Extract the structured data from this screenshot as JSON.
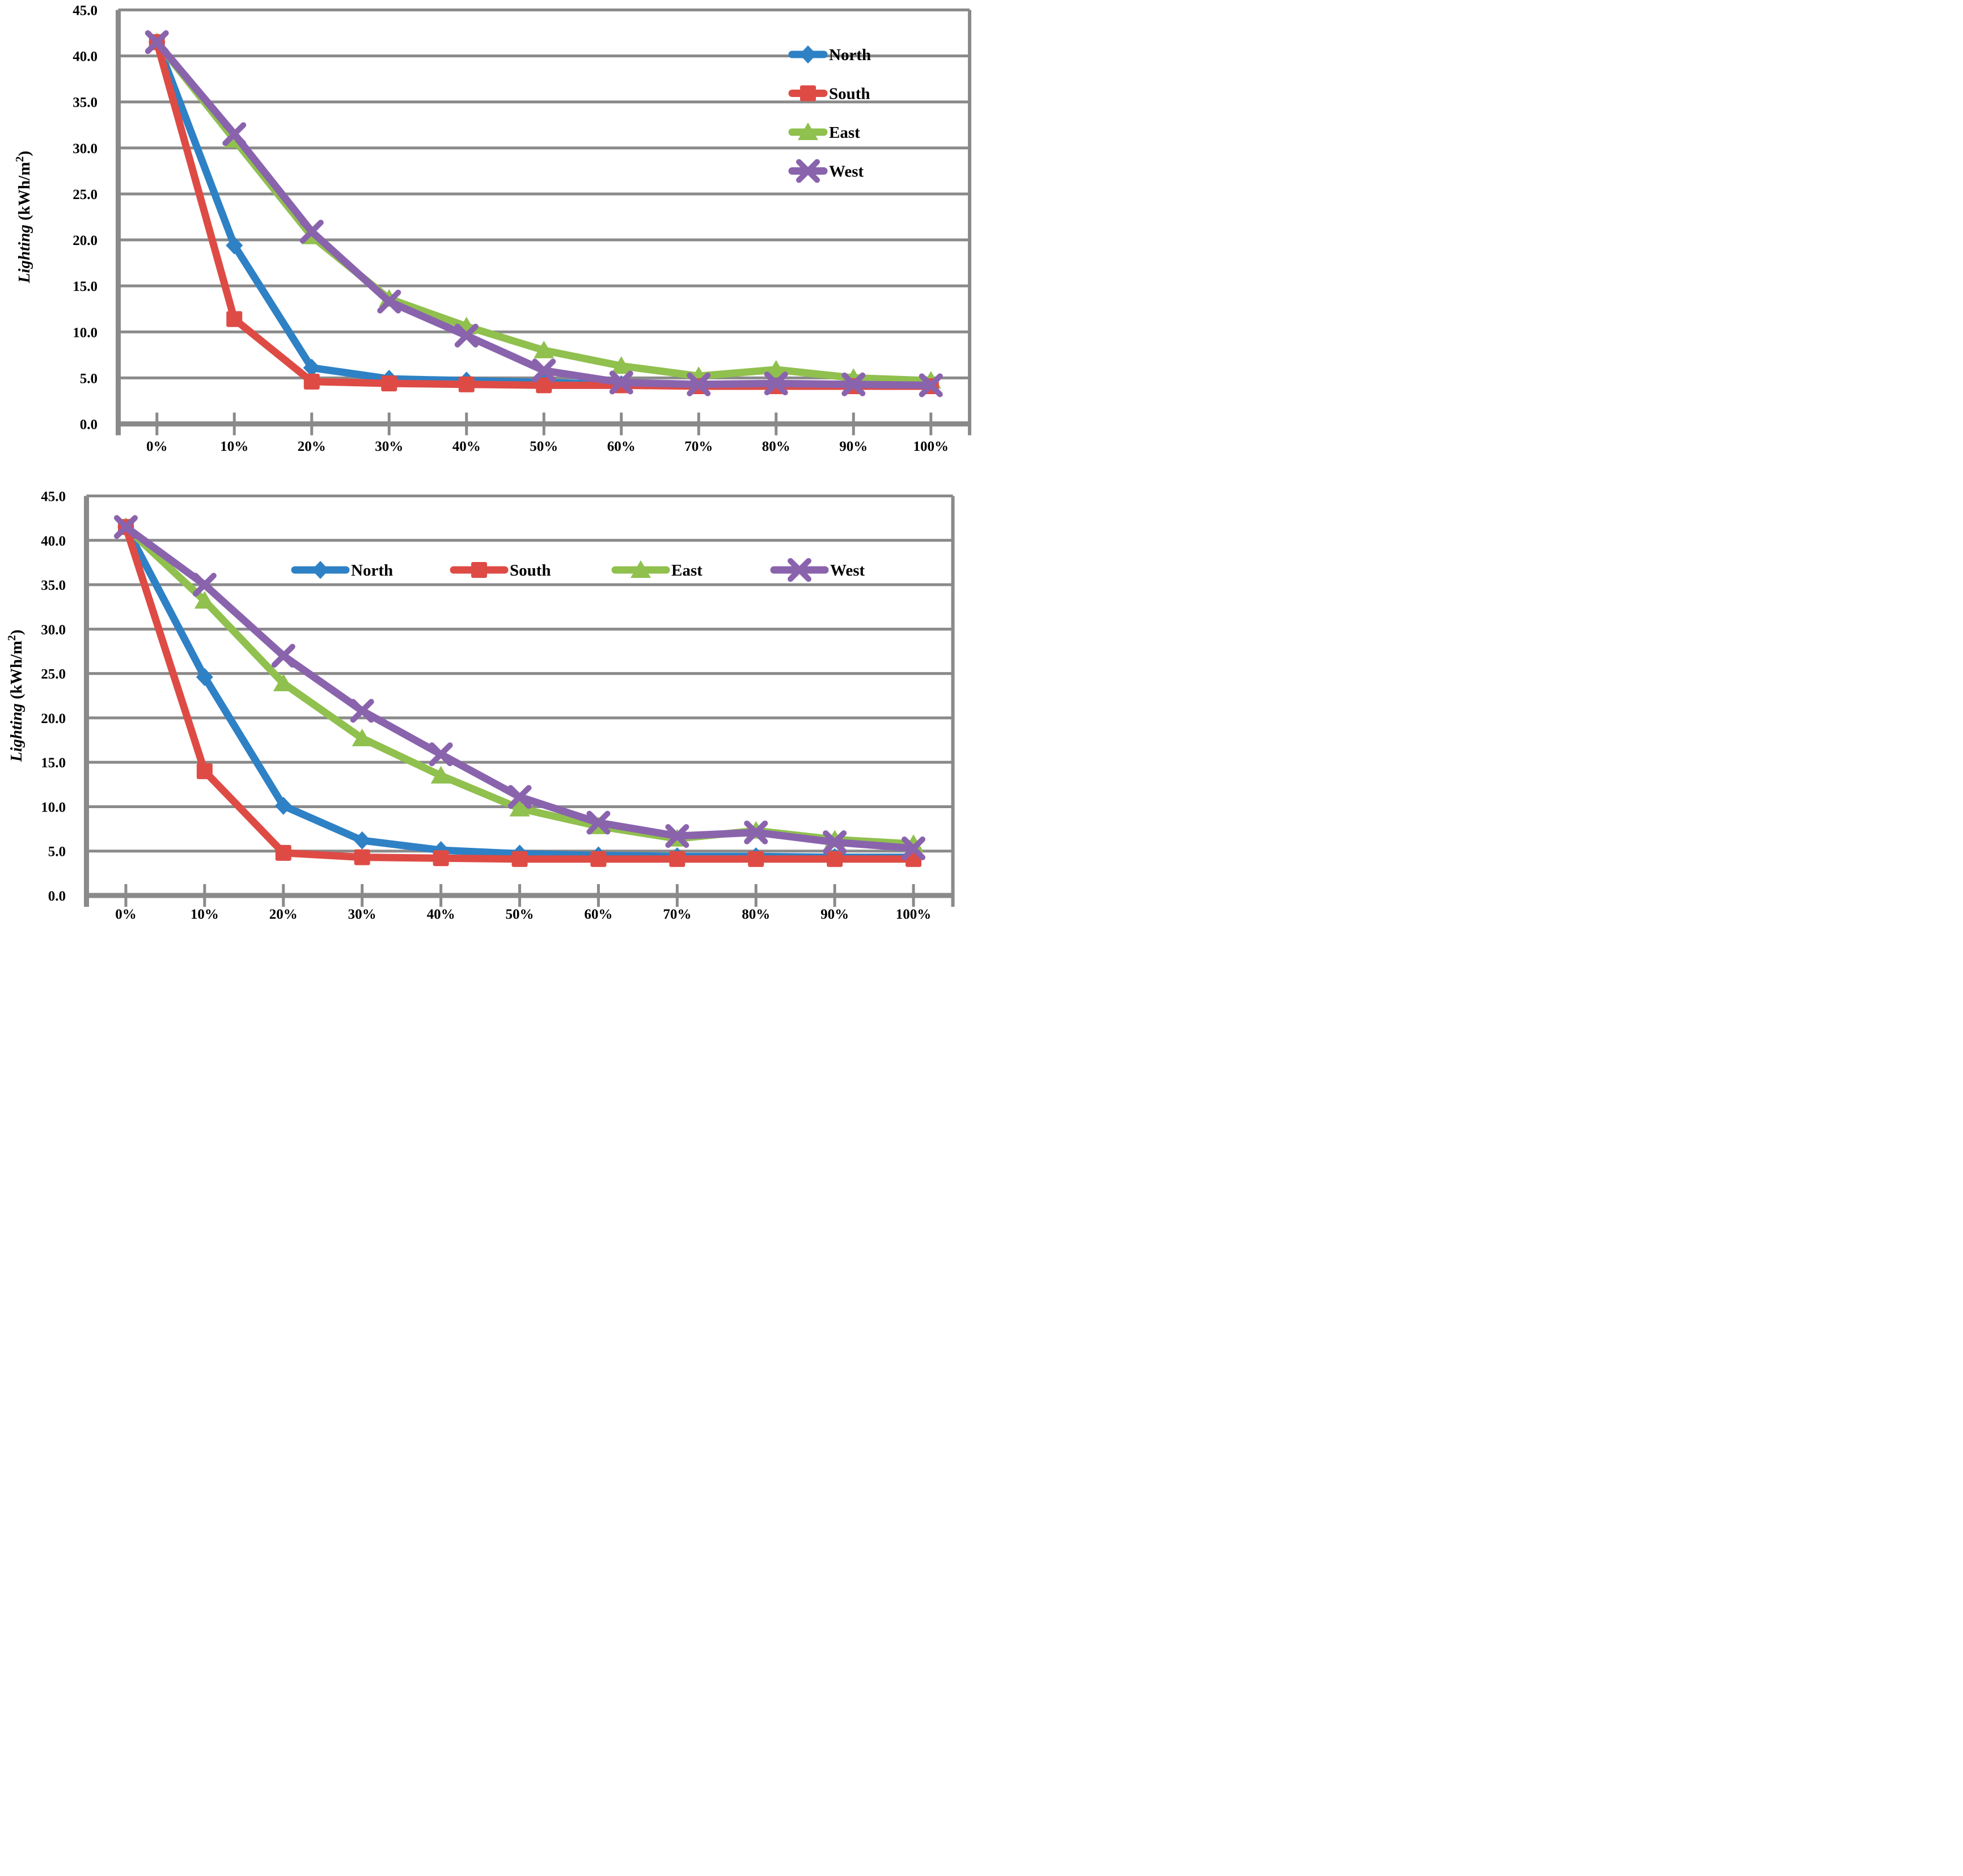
{
  "page": {
    "background": "#ffffff"
  },
  "colors": {
    "grid": "#8A8A8A",
    "axis": "#8A8A8A",
    "text": "#000000"
  },
  "chart_data": [
    {
      "type": "line",
      "panel": "top",
      "ylabel_parts": {
        "italic": "Lighting",
        "pre": " (kWh/m",
        "sup": "2",
        "close": ")"
      },
      "ylim": [
        0,
        45
      ],
      "ytick_step": 5,
      "grid": true,
      "legend_position": "inside-right-vertical",
      "ytick_labels": [
        "0.0",
        "5.0",
        "10.0",
        "15.0",
        "20.0",
        "25.0",
        "30.0",
        "35.0",
        "40.0",
        "45.0"
      ],
      "categories": [
        "0%",
        "10%",
        "20%",
        "30%",
        "40%",
        "50%",
        "60%",
        "70%",
        "80%",
        "90%",
        "100%"
      ],
      "series": [
        {
          "name": "North",
          "color": "#2E81C5",
          "marker": "diamond",
          "values": [
            41.5,
            19.4,
            6.1,
            4.9,
            4.7,
            4.5,
            4.3,
            4.3,
            4.3,
            4.2,
            4.2
          ]
        },
        {
          "name": "South",
          "color": "#DE4B45",
          "marker": "square",
          "values": [
            41.5,
            11.4,
            4.6,
            4.4,
            4.3,
            4.2,
            4.2,
            4.1,
            4.1,
            4.1,
            4.1
          ]
        },
        {
          "name": "East",
          "color": "#90C04E",
          "marker": "triangle",
          "values": [
            41.5,
            30.9,
            20.4,
            13.6,
            10.6,
            8.0,
            6.3,
            5.2,
            5.9,
            5.0,
            4.7
          ]
        },
        {
          "name": "West",
          "color": "#8A63AD",
          "marker": "x",
          "values": [
            41.5,
            31.5,
            20.9,
            13.3,
            9.6,
            5.8,
            4.5,
            4.3,
            4.4,
            4.3,
            4.2
          ]
        }
      ]
    },
    {
      "type": "line",
      "panel": "bottom",
      "ylabel_parts": {
        "italic": "Lighting",
        "pre": " (kWh/m",
        "sup": "2",
        "close": ")"
      },
      "ylim": [
        0,
        45
      ],
      "ytick_step": 5,
      "grid": true,
      "legend_position": "inside-top-horizontal",
      "ytick_labels": [
        "0.0",
        "5.0",
        "10.0",
        "15.0",
        "20.0",
        "25.0",
        "30.0",
        "35.0",
        "40.0",
        "45.0"
      ],
      "categories": [
        "0%",
        "10%",
        "20%",
        "30%",
        "40%",
        "50%",
        "60%",
        "70%",
        "80%",
        "90%",
        "100%"
      ],
      "series": [
        {
          "name": "North",
          "color": "#2E81C5",
          "marker": "diamond",
          "values": [
            41.5,
            24.6,
            10.1,
            6.2,
            5.1,
            4.7,
            4.5,
            4.4,
            4.4,
            4.3,
            4.3
          ]
        },
        {
          "name": "South",
          "color": "#DE4B45",
          "marker": "square",
          "values": [
            41.5,
            14.0,
            4.8,
            4.3,
            4.2,
            4.1,
            4.1,
            4.1,
            4.1,
            4.1,
            4.1
          ]
        },
        {
          "name": "East",
          "color": "#90C04E",
          "marker": "triangle",
          "values": [
            41.5,
            33.2,
            23.9,
            17.7,
            13.5,
            9.8,
            7.8,
            6.4,
            7.3,
            6.3,
            5.8
          ]
        },
        {
          "name": "West",
          "color": "#8A63AD",
          "marker": "x",
          "values": [
            41.5,
            35.0,
            27.0,
            20.8,
            15.9,
            11.1,
            8.2,
            6.7,
            7.1,
            6.0,
            5.3
          ]
        }
      ]
    }
  ]
}
